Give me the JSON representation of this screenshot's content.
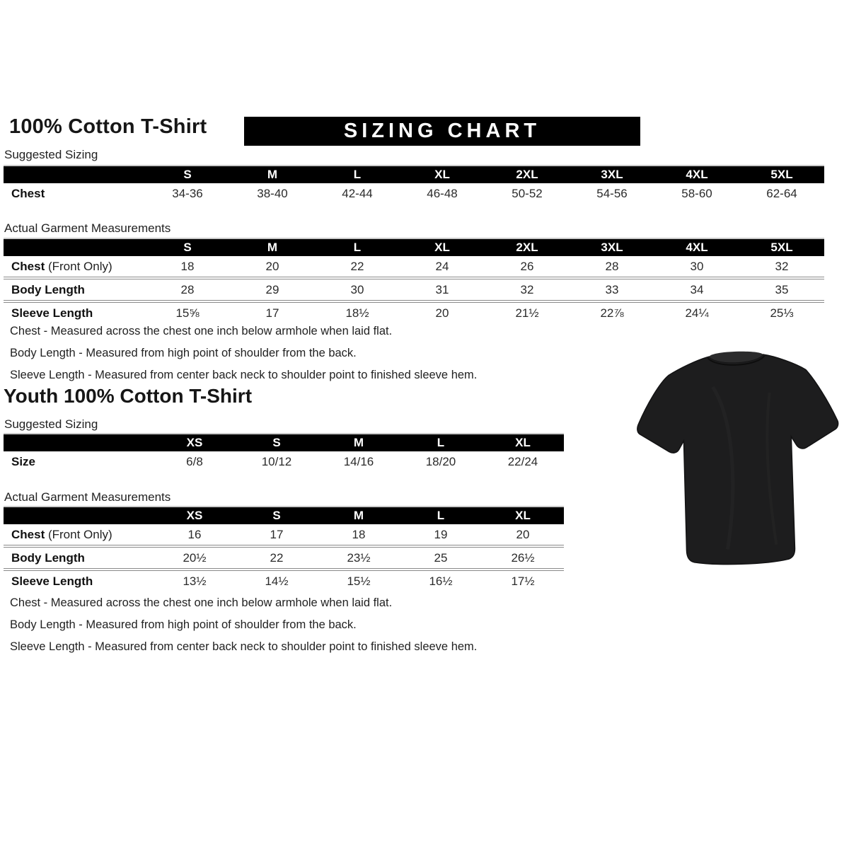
{
  "page": {
    "main_title": "100% Cotton T-Shirt",
    "banner": "SIZING CHART",
    "youth_title": "Youth 100% Cotton T-Shirt"
  },
  "labels": {
    "suggested": "Suggested Sizing",
    "actual": "Actual Garment Measurements"
  },
  "adult_suggested": {
    "columns": [
      "S",
      "M",
      "L",
      "XL",
      "2XL",
      "3XL",
      "4XL",
      "5XL"
    ],
    "rows": [
      {
        "label": "Chest",
        "suffix": "",
        "values": [
          "34-36",
          "38-40",
          "42-44",
          "46-48",
          "50-52",
          "54-56",
          "58-60",
          "62-64"
        ]
      }
    ]
  },
  "adult_actual": {
    "columns": [
      "S",
      "M",
      "L",
      "XL",
      "2XL",
      "3XL",
      "4XL",
      "5XL"
    ],
    "rows": [
      {
        "label": "Chest",
        "suffix": " (Front Only)",
        "values": [
          "18",
          "20",
          "22",
          "24",
          "26",
          "28",
          "30",
          "32"
        ]
      },
      {
        "label": "Body Length",
        "suffix": "",
        "values": [
          "28",
          "29",
          "30",
          "31",
          "32",
          "33",
          "34",
          "35"
        ]
      },
      {
        "label": "Sleeve Length",
        "suffix": "",
        "values": [
          "15⅝",
          "17",
          "18½",
          "20",
          "21½",
          "22⅞",
          "24¼",
          "25⅓"
        ]
      }
    ]
  },
  "youth_suggested": {
    "columns": [
      "XS",
      "S",
      "M",
      "L",
      "XL"
    ],
    "rows": [
      {
        "label": "Size",
        "suffix": "",
        "values": [
          "6/8",
          "10/12",
          "14/16",
          "18/20",
          "22/24"
        ]
      }
    ]
  },
  "youth_actual": {
    "columns": [
      "XS",
      "S",
      "M",
      "L",
      "XL"
    ],
    "rows": [
      {
        "label": "Chest",
        "suffix": " (Front Only)",
        "values": [
          "16",
          "17",
          "18",
          "19",
          "20"
        ]
      },
      {
        "label": "Body Length",
        "suffix": "",
        "values": [
          "20½",
          "22",
          "23½",
          "25",
          "26½"
        ]
      },
      {
        "label": "Sleeve Length",
        "suffix": "",
        "values": [
          "13½",
          "14½",
          "15½",
          "16½",
          "17½"
        ]
      }
    ]
  },
  "notes": [
    "Chest - Measured across the chest one inch below armhole when laid flat.",
    "Body Length - Measured from high point of shoulder from the back.",
    "Sleeve Length - Measured from center back neck to shoulder point to finished sleeve hem."
  ],
  "colors": {
    "banner_bg": "#000000",
    "banner_fg": "#ffffff",
    "tshirt": "#1d1d1e"
  }
}
